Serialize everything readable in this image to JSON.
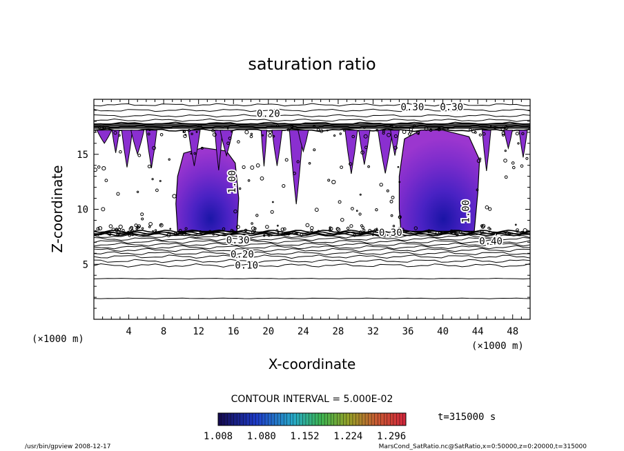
{
  "chart_data": {
    "type": "heatmap",
    "title": "saturation ratio",
    "xlabel": "X-coordinate",
    "ylabel": "Z-coordinate",
    "x_unit": "(×1000 m)",
    "y_unit": "(×1000 m)",
    "xlim": [
      0,
      50
    ],
    "ylim": [
      0,
      20
    ],
    "x_ticks": [
      4,
      8,
      12,
      16,
      20,
      24,
      28,
      32,
      36,
      40,
      44,
      48
    ],
    "y_ticks": [
      5,
      10,
      15
    ],
    "contour_interval_text": "CONTOUR INTERVAL = 5.000E-02",
    "contour_labels": [
      "0.10",
      "0.20",
      "0.30",
      "0.30",
      "0.30",
      "0.20",
      "0.30",
      "1.00",
      "1.00",
      "0.40"
    ],
    "fill_threshold": 1.008,
    "fill_regions": [
      {
        "x": [
          9.5,
          16.5
        ],
        "z": [
          8,
          15.5
        ],
        "center_x": 13,
        "center_z": 9.2
      },
      {
        "x": [
          35,
          44
        ],
        "z": [
          8,
          17
        ],
        "center_x": 39.5,
        "center_z": 9.0
      }
    ],
    "colorbar": {
      "ticks": [
        "1.008",
        "1.080",
        "1.152",
        "1.224",
        "1.296"
      ],
      "range": [
        1.008,
        1.32
      ]
    },
    "time_label": "t=315000 s",
    "footer_left": "/usr/bin/gpview  2008-12-17",
    "footer_right": "MarsCond_SatRatio.nc@SatRatio,x=0:50000,z=0:20000,t=315000",
    "grid": false
  }
}
